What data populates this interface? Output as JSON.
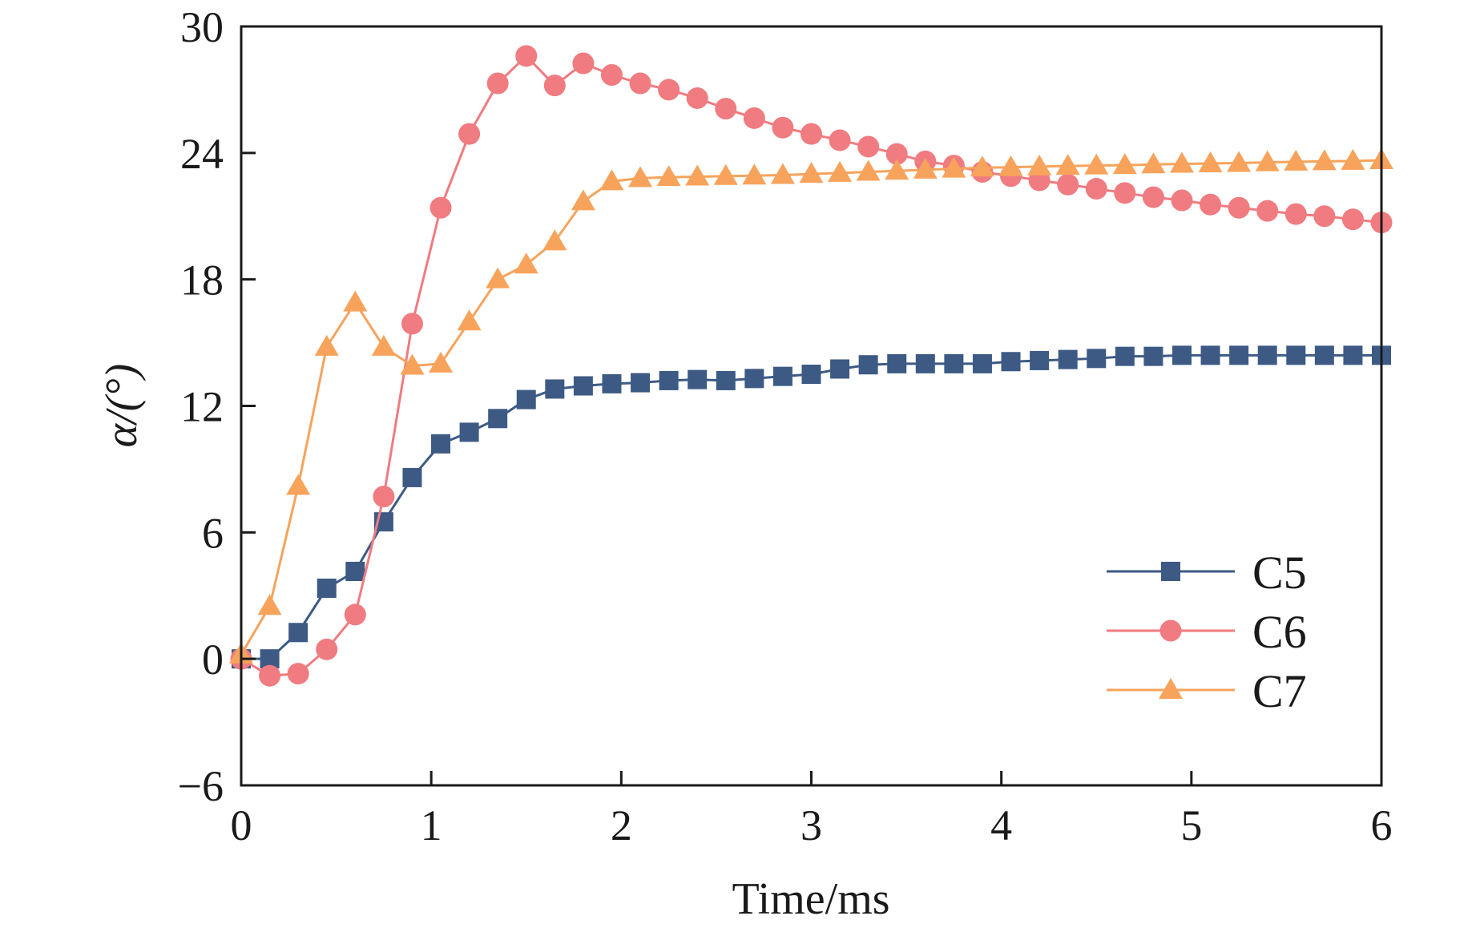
{
  "chart_data": {
    "type": "line",
    "xlabel": "Time/ms",
    "ylabel": "α/(°)",
    "xlim": [
      0,
      6
    ],
    "ylim": [
      -6,
      30
    ],
    "xticks": [
      0,
      1,
      2,
      3,
      4,
      5,
      6
    ],
    "yticks": [
      -6,
      0,
      6,
      12,
      18,
      24,
      30
    ],
    "xtick_labels": [
      "0",
      "1",
      "2",
      "3",
      "4",
      "5",
      "6"
    ],
    "ytick_labels": [
      "−6",
      "0",
      "6",
      "12",
      "18",
      "24",
      "30"
    ],
    "grid": false,
    "legend_placement": "bottom-right",
    "x": [
      0,
      0.15,
      0.3,
      0.45,
      0.6,
      0.75,
      0.9,
      1.05,
      1.2,
      1.35,
      1.5,
      1.65,
      1.8,
      1.95,
      2.1,
      2.25,
      2.4,
      2.55,
      2.7,
      2.85,
      3.0,
      3.15,
      3.3,
      3.45,
      3.6,
      3.75,
      3.9,
      4.05,
      4.2,
      4.35,
      4.5,
      4.65,
      4.8,
      4.95,
      5.1,
      5.25,
      5.4,
      5.55,
      5.7,
      5.85,
      6.0
    ],
    "series": [
      {
        "name": "C5",
        "color": "#3d5a85",
        "marker": "square",
        "values": [
          0,
          0,
          1.25,
          3.35,
          4.15,
          6.5,
          8.6,
          10.2,
          10.75,
          11.4,
          12.3,
          12.8,
          12.95,
          13.05,
          13.1,
          13.2,
          13.25,
          13.2,
          13.3,
          13.4,
          13.5,
          13.75,
          13.95,
          14.0,
          14.0,
          14.0,
          14.0,
          14.1,
          14.15,
          14.2,
          14.25,
          14.35,
          14.35,
          14.4,
          14.4,
          14.4,
          14.4,
          14.4,
          14.4,
          14.4,
          14.4
        ]
      },
      {
        "name": "C6",
        "color": "#f07b80",
        "marker": "circle",
        "values": [
          0,
          -0.8,
          -0.7,
          0.45,
          2.1,
          7.7,
          15.9,
          21.4,
          24.9,
          27.3,
          28.6,
          27.2,
          28.25,
          27.7,
          27.3,
          27.0,
          26.6,
          26.1,
          25.65,
          25.2,
          24.9,
          24.6,
          24.3,
          23.95,
          23.6,
          23.4,
          23.1,
          22.9,
          22.7,
          22.5,
          22.3,
          22.1,
          21.9,
          21.75,
          21.55,
          21.4,
          21.25,
          21.1,
          21.0,
          20.85,
          20.7
        ]
      },
      {
        "name": "C7",
        "color": "#f7a35c",
        "marker": "triangle",
        "values": [
          0.2,
          2.5,
          8.2,
          14.8,
          16.9,
          14.8,
          13.9,
          14.0,
          16.0,
          18.0,
          18.7,
          19.8,
          21.7,
          22.65,
          22.8,
          22.85,
          22.87,
          22.9,
          22.92,
          22.95,
          23.0,
          23.05,
          23.1,
          23.15,
          23.2,
          23.25,
          23.3,
          23.32,
          23.35,
          23.38,
          23.4,
          23.42,
          23.45,
          23.48,
          23.5,
          23.52,
          23.55,
          23.58,
          23.6,
          23.62,
          23.65
        ]
      }
    ]
  }
}
